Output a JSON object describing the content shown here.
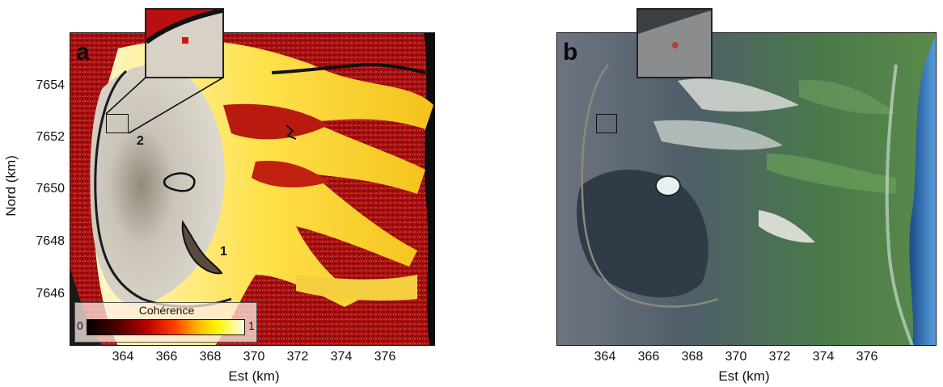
{
  "panel_a": {
    "letter": "a"
  },
  "panel_b": {
    "letter": "b"
  },
  "y_axis": {
    "label": "Nord (km)",
    "ticks": [
      "7654",
      "7652",
      "7650",
      "7648",
      "7646"
    ]
  },
  "x_axis_a": {
    "label": "Est (km)",
    "ticks": [
      "364",
      "366",
      "368",
      "370",
      "372",
      "374",
      "376"
    ]
  },
  "x_axis_b": {
    "label": "Est (km)",
    "ticks": [
      "364",
      "366",
      "368",
      "370",
      "372",
      "374",
      "376"
    ]
  },
  "colorbar": {
    "title": "Cohérence",
    "min_label": "0",
    "max_label": "1",
    "min": 0,
    "max": 1
  },
  "feature_labels": {
    "one": "1",
    "two": "2"
  },
  "colors": {
    "coherence_low": "#b01010",
    "coherence_high": "#fff4a0",
    "frame": "#111111"
  }
}
